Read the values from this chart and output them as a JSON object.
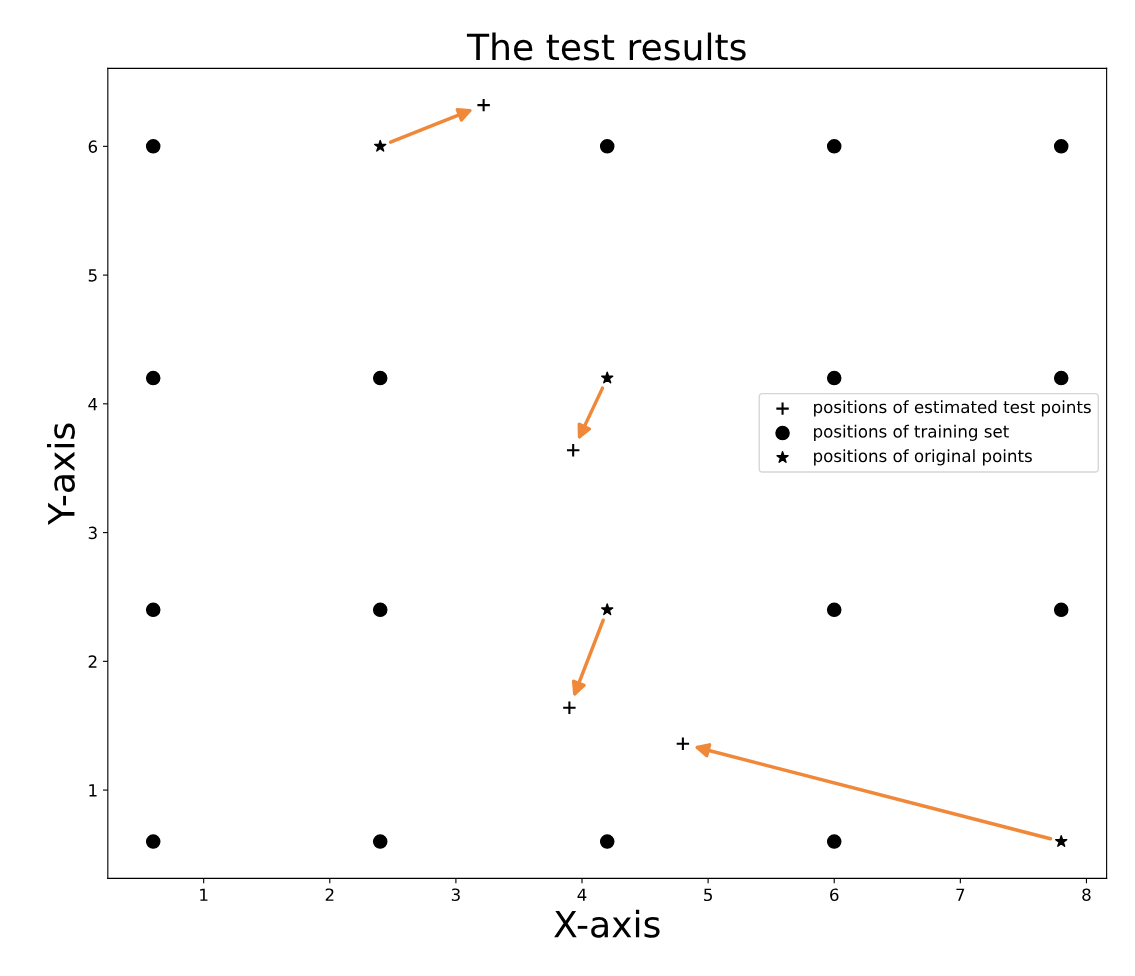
{
  "chart_data": {
    "type": "scatter",
    "title": "The test results",
    "xlabel": "X-axis",
    "ylabel": "Y-axis",
    "xlim": [
      0.24,
      8.16
    ],
    "ylim": [
      0.314,
      6.606
    ],
    "xticks": [
      1,
      2,
      3,
      4,
      5,
      6,
      7,
      8
    ],
    "yticks": [
      1,
      2,
      3,
      4,
      5,
      6
    ],
    "grid": false,
    "legend": "right",
    "series": [
      {
        "name": "positions of estimated test points",
        "color": "#000000",
        "marker": "cross",
        "x": [
          3.22,
          3.93,
          3.9,
          4.8
        ],
        "values": [
          6.32,
          3.64,
          1.64,
          1.36
        ]
      },
      {
        "name": "positions of training set",
        "color": "#000000",
        "marker": "circle",
        "x": [
          0.6,
          0.6,
          0.6,
          0.6,
          2.4,
          2.4,
          2.4,
          4.2,
          4.2,
          6,
          6,
          6,
          6,
          7.8,
          7.8,
          7.8
        ],
        "values": [
          0.6,
          2.4,
          4.2,
          6,
          0.6,
          2.4,
          4.2,
          0.6,
          6,
          0.6,
          2.4,
          4.2,
          6,
          2.4,
          4.2,
          6
        ]
      },
      {
        "name": "positions of original points",
        "color": "#000000",
        "marker": "star",
        "x": [
          2.4,
          4.2,
          4.2,
          7.8
        ],
        "values": [
          6,
          4.2,
          2.4,
          0.6
        ]
      }
    ]
  }
}
